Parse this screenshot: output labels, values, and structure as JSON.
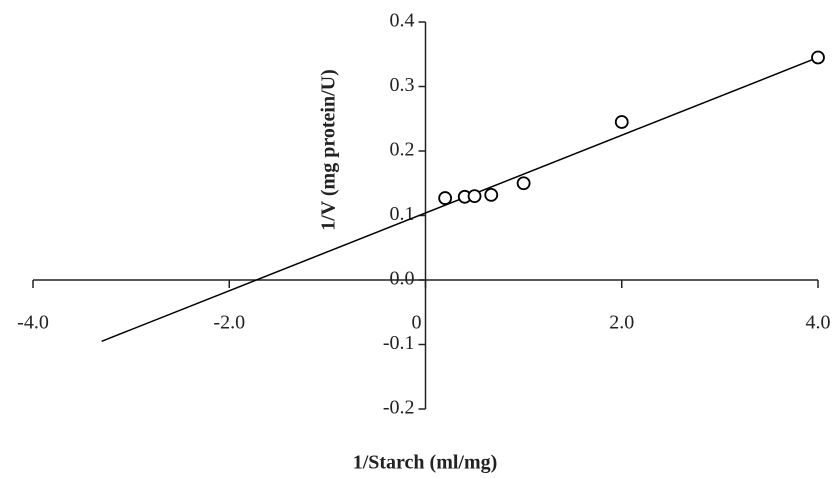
{
  "chart_data": {
    "type": "scatter",
    "x_label": "1/Starch (ml/mg)",
    "y_label": "1/V (mg protein/U)",
    "series": [
      {
        "color": "#000000",
        "x": [
          0.2,
          0.4,
          0.5,
          0.67,
          1.0,
          2.0,
          4.0
        ],
        "values": [
          0.127,
          0.129,
          0.13,
          0.132,
          0.15,
          0.245,
          0.345
        ]
      }
    ],
    "trendline": {
      "color": "#000000",
      "x": [
        -3.3,
        4.0
      ],
      "y": [
        -0.095,
        0.345
      ]
    },
    "xlim": [
      -4.0,
      4.0
    ],
    "ylim": [
      -0.2,
      0.4
    ],
    "xticks": [
      {
        "value": -4.0,
        "label": "-4.0"
      },
      {
        "value": -2.0,
        "label": "-2.0"
      },
      0,
      {
        "value": 2.0,
        "label": "2.0"
      },
      {
        "value": 4.0,
        "label": "4.0"
      }
    ],
    "yticks": [
      -0.2,
      -0.1,
      {
        "value": 0.0,
        "label": "0.0"
      },
      0.1,
      0.2,
      0.3,
      0.4
    ],
    "grid": false
  }
}
